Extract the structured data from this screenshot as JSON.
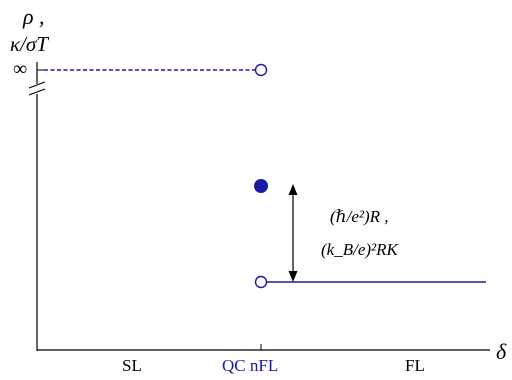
{
  "colors": {
    "blue": "#1a1aa6",
    "black": "#000000"
  },
  "axes": {
    "y_label_1": "ρ ,",
    "y_label_2": "κ/σT",
    "infinity_label": "∞",
    "x_label": "δ"
  },
  "regions": {
    "left": "SL",
    "middle": "QC nFL",
    "right": "FL"
  },
  "annotation": {
    "line_1": "(ℏ/e²)R ,",
    "line_2": "(k_B/e)²RK"
  }
}
